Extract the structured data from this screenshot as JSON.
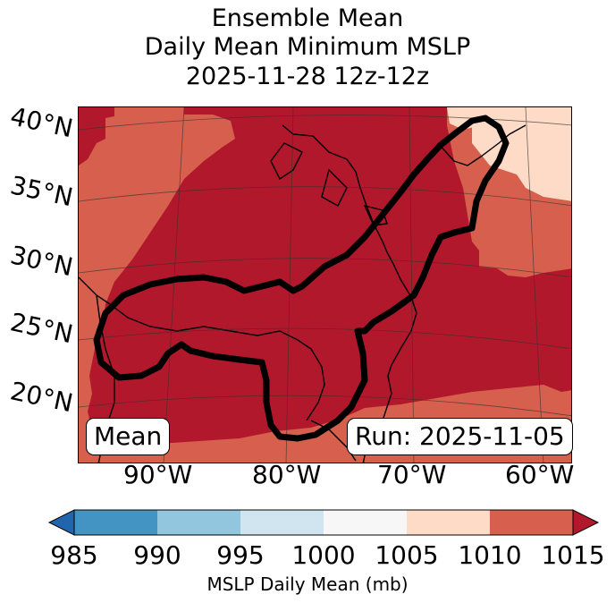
{
  "title": {
    "line1": "Ensemble Mean",
    "line2": "Daily Mean Minimum MSLP",
    "line3": "2025-11-28 12z-12z"
  },
  "map": {
    "lat_labels": [
      "40°N",
      "35°N",
      "30°N",
      "25°N",
      "20°N"
    ],
    "lon_labels": [
      "90°W",
      "80°W",
      "70°W",
      "60°W"
    ],
    "panel_label": "Mean",
    "run_label": "Run: 2025-11-05",
    "fill_colors": {
      "1000_1005": "#f7f7f7",
      "1005_1010": "#fddbc7",
      "1010_1015": "#d6604d",
      "above_1015": "#b2182b"
    },
    "contour_color": "#000000"
  },
  "colorbar": {
    "ticks": [
      "985",
      "990",
      "995",
      "1000",
      "1005",
      "1010",
      "1015"
    ],
    "label": "MSLP Daily Mean (mb)",
    "colors": [
      "#2166ac",
      "#4393c3",
      "#92c5de",
      "#d1e5f0",
      "#f7f7f7",
      "#fddbc7",
      "#d6604d",
      "#b2182b"
    ]
  }
}
